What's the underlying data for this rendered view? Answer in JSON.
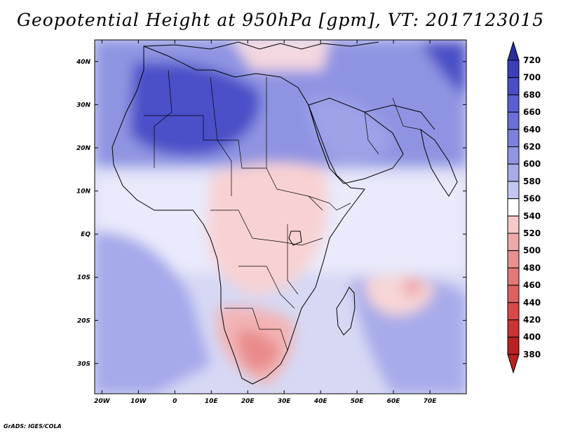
{
  "title": "Geopotential Height at 950hPa [gpm], VT: 2017123015",
  "footer": "GrADS: IGES/COLA",
  "map": {
    "variable": "Geopotential Height",
    "level": "950hPa",
    "units": "gpm",
    "valid_time": "2017123015",
    "lon_range": [
      -22,
      80
    ],
    "lat_range": [
      -37,
      45
    ],
    "lon_ticks": [
      "20W",
      "10W",
      "0",
      "10E",
      "20E",
      "30E",
      "40E",
      "50E",
      "60E",
      "70E"
    ],
    "lat_ticks": [
      "40N",
      "30N",
      "20N",
      "10N",
      "EQ",
      "10S",
      "20S",
      "30S"
    ]
  },
  "colorbar": {
    "levels": [
      "720",
      "700",
      "680",
      "660",
      "640",
      "620",
      "600",
      "580",
      "560",
      "540",
      "520",
      "500",
      "480",
      "460",
      "440",
      "420",
      "400",
      "380"
    ],
    "colors": [
      "#2a2f9e",
      "#3b3fb8",
      "#4a4ec6",
      "#5a5fd0",
      "#6a70d8",
      "#7c81de",
      "#8f95e3",
      "#a7abe9",
      "#c3c6f0",
      "#ffffff",
      "#f6c9c9",
      "#f0a9a9",
      "#ea9090",
      "#e47878",
      "#de6060",
      "#d84848",
      "#c93535",
      "#b82222"
    ]
  },
  "colors": {
    "ocean_base": "#d0d3f3",
    "border": "#000000"
  }
}
